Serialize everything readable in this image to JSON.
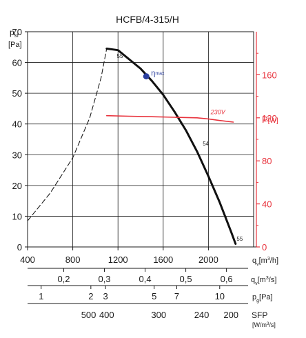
{
  "chart_data": {
    "type": "line",
    "title": "HCFB/4-315/H",
    "x_axis": {
      "label_main": "q",
      "label_sub": "v",
      "label_unit": "[m",
      "label_sup": "3",
      "label_tail": "/h]",
      "ticks": [
        400,
        800,
        1200,
        1600,
        2000
      ],
      "xlim": [
        400,
        2400
      ]
    },
    "y_axis": {
      "label_main": "p",
      "label_sub": "sf",
      "label_unit": "[Pa]",
      "ticks": [
        0,
        10,
        20,
        30,
        40,
        50,
        60,
        70
      ],
      "ylim": [
        0,
        70
      ]
    },
    "y2_axis": {
      "label_main": "P",
      "label_unit": "[W]",
      "ticks": [
        0,
        40,
        80,
        120,
        160
      ],
      "ylim": [
        0,
        200
      ],
      "color": "#e8323c"
    },
    "scale_rows": [
      {
        "label_main": "q",
        "label_sub": "v",
        "label_unit": "[m",
        "label_sup": "3",
        "label_tail": "/s]",
        "ticks": [
          {
            "label": "0,2",
            "x": 720
          },
          {
            "label": "0,3",
            "x": 1080
          },
          {
            "label": "0,4",
            "x": 1440
          },
          {
            "label": "0,5",
            "x": 1800
          },
          {
            "label": "0,6",
            "x": 2160
          }
        ]
      },
      {
        "label_main": "p",
        "label_sub": "g",
        "label_unit": "[Pa]",
        "ticks": [
          {
            "label": "1",
            "x": 520
          },
          {
            "label": "2",
            "x": 960
          },
          {
            "label": "3",
            "x": 1090
          },
          {
            "label": "5",
            "x": 1520
          },
          {
            "label": "7",
            "x": 1720
          },
          {
            "label": "10",
            "x": 2100
          }
        ]
      },
      {
        "label_main": "SFP",
        "label_unit": "[W/m",
        "label_sup": "3",
        "label_tail": "/s]",
        "ticks": [
          {
            "label": "500",
            "x": 940
          },
          {
            "label": "400",
            "x": 1100
          },
          {
            "label": "300",
            "x": 1560
          },
          {
            "label": "240",
            "x": 1940
          },
          {
            "label": "200",
            "x": 2200
          }
        ]
      }
    ],
    "series": [
      {
        "role": "pressure-dashed",
        "style": "dashed",
        "axis": "left",
        "points": [
          [
            400,
            8.5
          ],
          [
            600,
            17.5
          ],
          [
            800,
            29
          ],
          [
            950,
            42
          ],
          [
            1050,
            55
          ],
          [
            1100,
            64.5
          ]
        ]
      },
      {
        "role": "pressure",
        "style": "solid",
        "axis": "left",
        "points": [
          [
            1100,
            64.5
          ],
          [
            1200,
            64
          ],
          [
            1300,
            61
          ],
          [
            1400,
            58
          ],
          [
            1500,
            54
          ],
          [
            1600,
            49.5
          ],
          [
            1700,
            44
          ],
          [
            1800,
            38
          ],
          [
            1900,
            31
          ],
          [
            2000,
            23
          ],
          [
            2100,
            14.5
          ],
          [
            2200,
            5
          ],
          [
            2240,
            1
          ]
        ]
      },
      {
        "role": "power",
        "style": "solid",
        "axis": "right",
        "color": "#e8323c",
        "points": [
          [
            1100,
            122
          ],
          [
            1300,
            121.5
          ],
          [
            1500,
            121
          ],
          [
            1700,
            120.5
          ],
          [
            1900,
            120
          ],
          [
            2000,
            119
          ],
          [
            2100,
            117.5
          ],
          [
            2220,
            116
          ]
        ]
      }
    ],
    "annotations": [
      {
        "text": "55",
        "x": 1190,
        "y": 61.5,
        "axis": "left",
        "color": "#1a1a1a"
      },
      {
        "text": "54",
        "x": 1950,
        "y": 33,
        "axis": "left",
        "color": "#1a1a1a"
      },
      {
        "text": "55",
        "x": 2250,
        "y": 2,
        "axis": "left",
        "color": "#1a1a1a"
      },
      {
        "text": "230V",
        "x": 2020,
        "y": 123.5,
        "axis": "right",
        "color": "#e8323c",
        "italic": true
      }
    ],
    "max_efficiency_point": {
      "x": 1450,
      "y": 55.5,
      "label_main": "η",
      "label_sub": "max",
      "color": "#2a3e9e"
    },
    "grid": true
  }
}
